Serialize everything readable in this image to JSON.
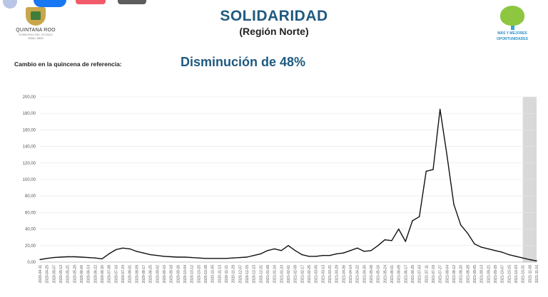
{
  "header": {
    "title": "SOLIDARIDAD",
    "subtitle": "(Región Norte)",
    "left_logo": {
      "name": "QUINTANA ROO",
      "subtext": "GOBIERNO DEL ESTADO",
      "years": "2016 • 2022"
    },
    "right_logo": {
      "slogan_line1": "MÁS Y MEJORES",
      "slogan_line2": "OPORTUNIDADES"
    }
  },
  "reference": {
    "label": "Cambio en la quincena de referencia:",
    "value": "Disminución de 48%"
  },
  "colors": {
    "title": "#1f5a80",
    "line": "#111111",
    "shade": "#d9d9d9",
    "grid": "#e6e6e6"
  },
  "chart_data": {
    "type": "line",
    "ylim": [
      0,
      200
    ],
    "y_ticks": [
      "0,00",
      "20,00",
      "40,00",
      "60,00",
      "80,00",
      "100,00",
      "120,00",
      "140,00",
      "160,00",
      "180,00",
      "200,00"
    ],
    "x_tick_labels": [
      "2020-04-11",
      "2020-04-25",
      "2020-05-07",
      "2020-05-13",
      "2020-05-21",
      "2020-05-29",
      "2020-06-06",
      "2020-06-14",
      "2020-06-22",
      "2020-06-30",
      "2020-07-08",
      "2020-07-16",
      "2020-07-24",
      "2020-08-01",
      "2020-08-09",
      "2020-08-17",
      "2020-08-25",
      "2020-09-02",
      "2020-09-10",
      "2020-09-18",
      "2020-09-26",
      "2020-10-04",
      "2020-10-12",
      "2020-10-20",
      "2020-10-28",
      "2020-11-05",
      "2020-11-13",
      "2020-11-21",
      "2020-11-29",
      "2020-12-07",
      "2020-12-15",
      "2020-12-23",
      "2020-12-31",
      "2021-01-08",
      "2021-01-16",
      "2021-01-24",
      "2021-02-01",
      "2021-02-09",
      "2021-02-17",
      "2021-02-25",
      "2021-03-05",
      "2021-03-13",
      "2021-03-21",
      "2021-03-29",
      "2021-04-06",
      "2021-04-14",
      "2021-04-22",
      "2021-04-30",
      "2021-05-08",
      "2021-05-16",
      "2021-05-24",
      "2021-06-01",
      "2021-06-09",
      "2021-06-17",
      "2021-06-25",
      "2021-07-03",
      "2021-07-11",
      "2021-07-19",
      "2021-07-27",
      "2021-08-04",
      "2021-08-12",
      "2021-08-20",
      "2021-08-28",
      "2021-09-05",
      "2021-09-13",
      "2021-09-21",
      "2021-09-29",
      "2021-10-07",
      "2021-10-15",
      "2021-10-23",
      "2021-10-31",
      "2021-11-08",
      "2021-11-16"
    ],
    "shaded_from_index": 70,
    "series": [
      {
        "values": [
          3,
          4.5,
          5.5,
          6,
          6.5,
          6.5,
          6,
          5.5,
          5,
          4,
          10,
          15,
          17,
          16,
          13,
          11,
          9,
          8,
          7,
          6.5,
          6,
          6,
          5.5,
          5,
          4.5,
          4.5,
          4.5,
          4.5,
          5,
          5.5,
          6,
          8,
          10,
          14,
          16,
          14,
          20,
          14,
          9,
          7,
          7,
          8,
          8,
          10,
          11,
          14,
          17,
          13,
          14,
          20,
          27,
          26,
          40,
          25,
          50,
          55,
          110,
          112,
          185,
          130,
          70,
          45,
          35,
          22,
          18,
          16,
          14,
          12,
          9,
          7,
          5,
          3,
          1.5
        ]
      }
    ]
  }
}
